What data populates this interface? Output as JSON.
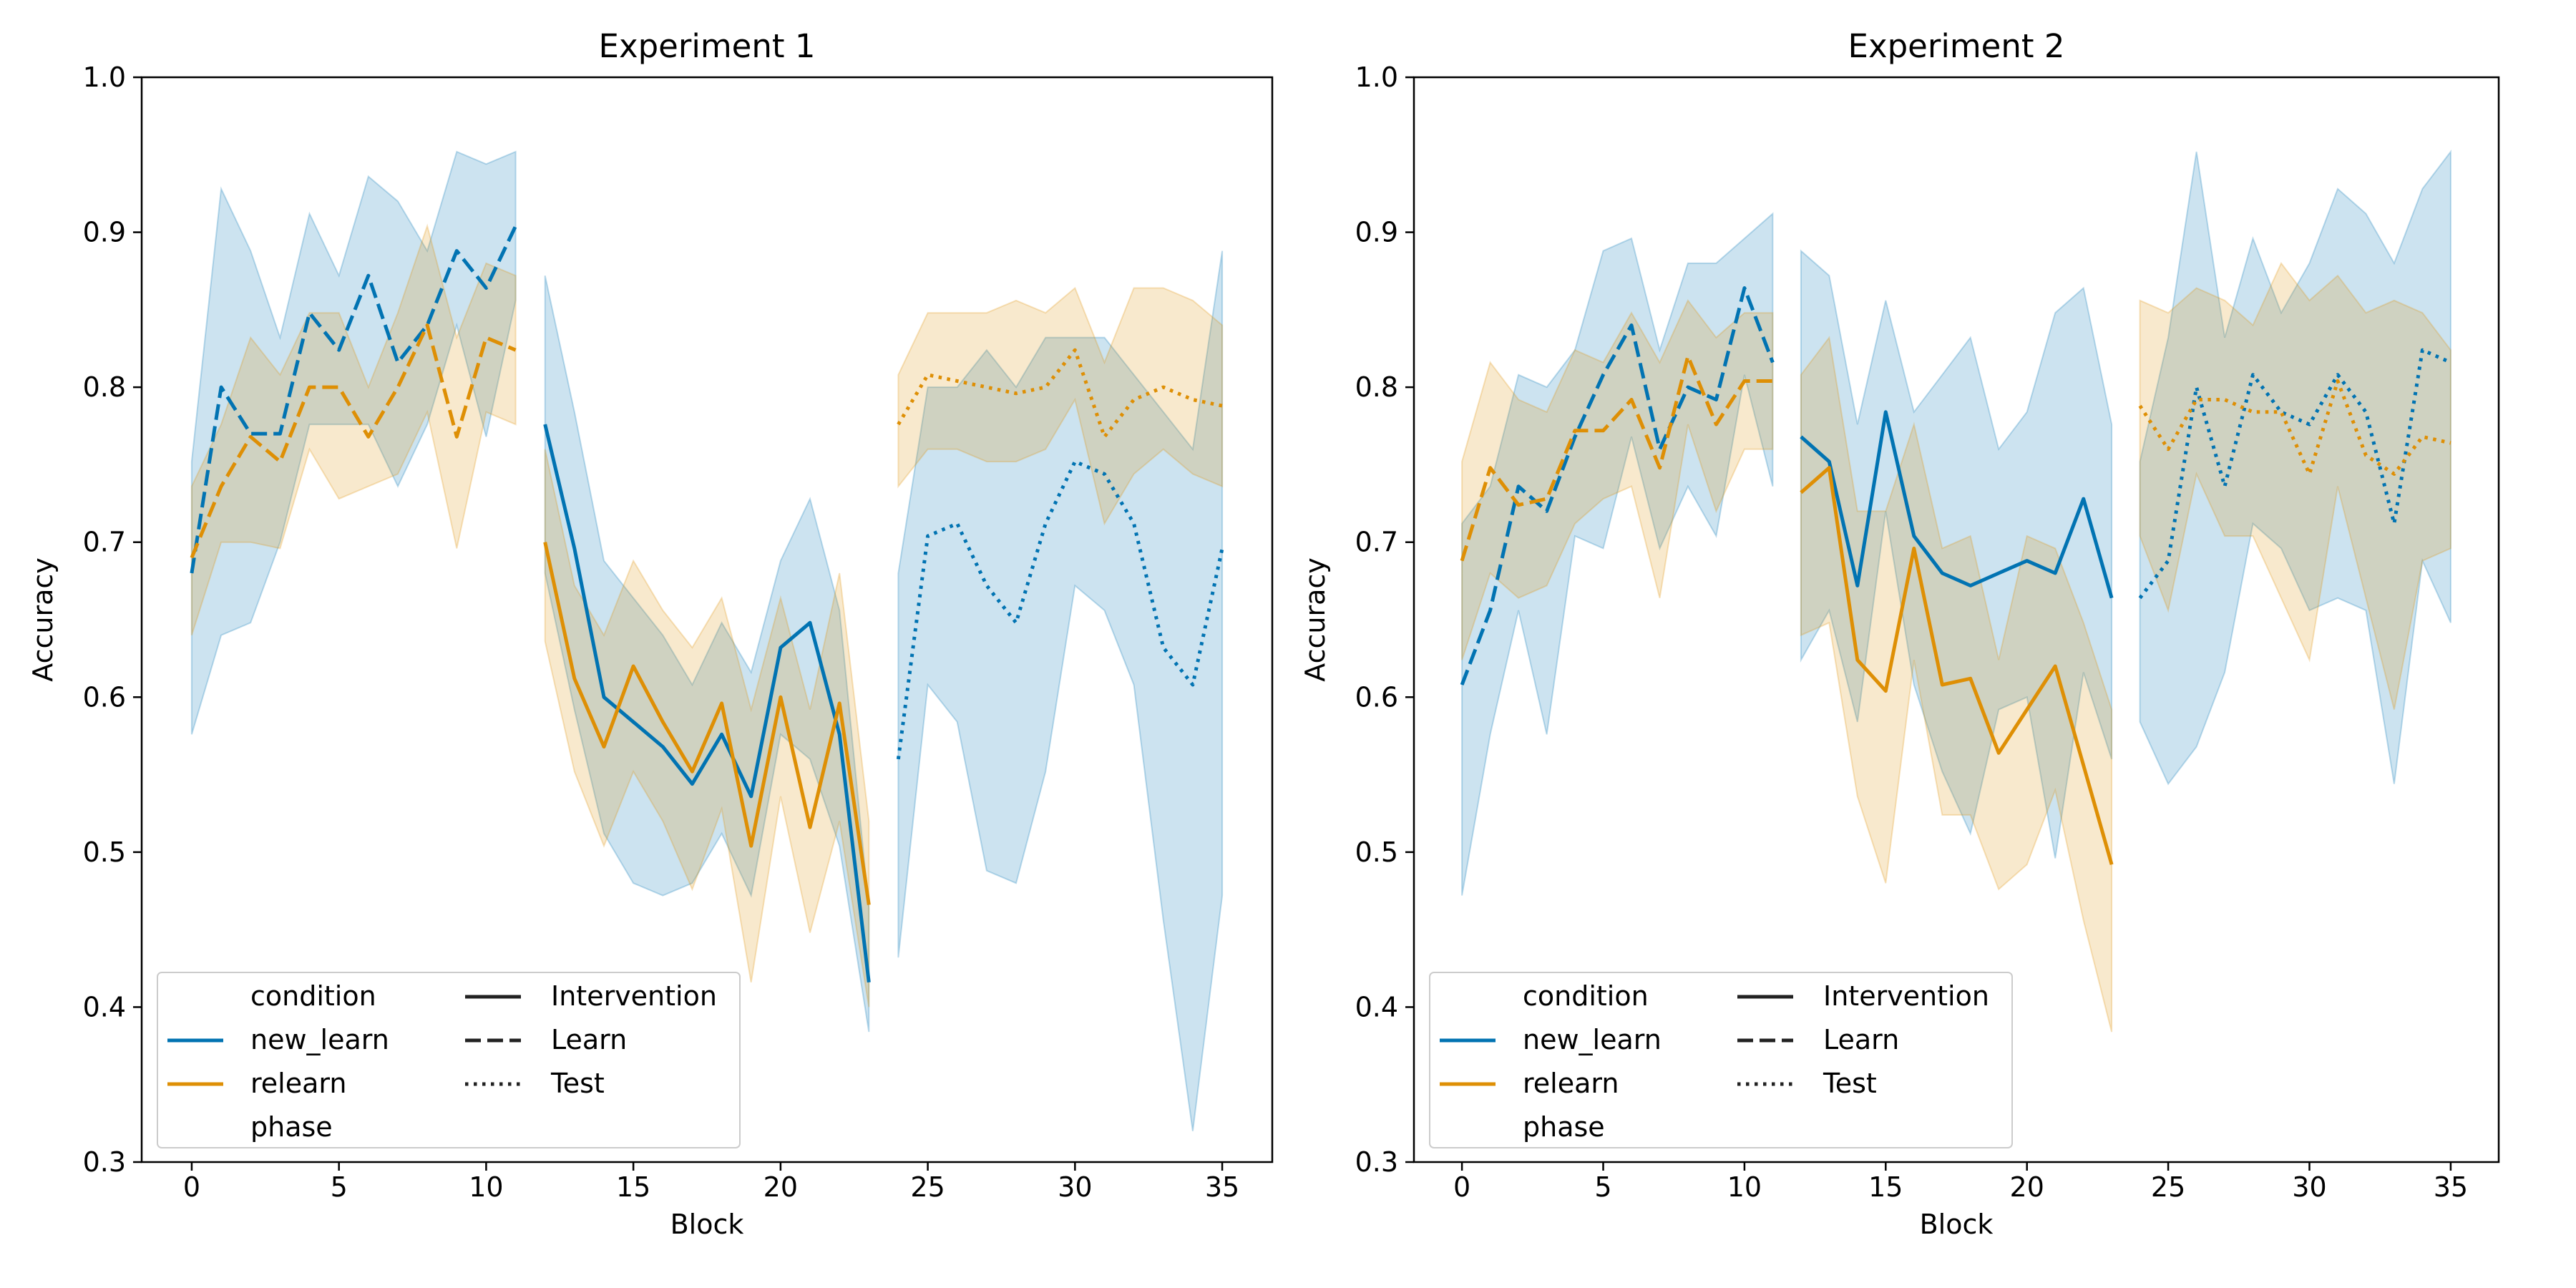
{
  "colors": {
    "new_learn": "#0173b2",
    "relearn": "#de8f05",
    "new_learn_band": "#0173b2",
    "relearn_band": "#de8f05",
    "axis": "#000000"
  },
  "legend": {
    "hue_title": "condition",
    "hue_items": [
      {
        "label": "new_learn",
        "color": "#0173b2"
      },
      {
        "label": "relearn",
        "color": "#de8f05"
      }
    ],
    "style_title": "phase",
    "style_items": [
      {
        "label": "Intervention",
        "dash": "solid"
      },
      {
        "label": "Learn",
        "dash": "dashed"
      },
      {
        "label": "Test",
        "dash": "dotted"
      }
    ],
    "placement": "lower-left"
  },
  "chart_data": [
    {
      "type": "line",
      "title": "Experiment 1",
      "xlabel": "Block",
      "ylabel": "Accuracy",
      "xlim": [
        -1.7,
        36.7
      ],
      "ylim": [
        0.3,
        1.0
      ],
      "xticks": [
        0,
        5,
        10,
        15,
        20,
        25,
        30,
        35
      ],
      "yticks": [
        "0.3",
        "0.4",
        "0.5",
        "0.6",
        "0.7",
        "0.8",
        "0.9",
        "1.0"
      ],
      "grid": false,
      "series": [
        {
          "condition": "new_learn",
          "phase": "Learn",
          "x": [
            0,
            1,
            2,
            3,
            4,
            5,
            6,
            7,
            8,
            9,
            10,
            11
          ],
          "y": [
            0.68,
            0.8,
            0.77,
            0.77,
            0.848,
            0.824,
            0.872,
            0.816,
            0.84,
            0.888,
            0.864,
            0.904
          ],
          "lo": [
            0.576,
            0.64,
            0.648,
            0.7,
            0.776,
            0.776,
            0.776,
            0.736,
            0.776,
            0.84,
            0.768,
            0.856
          ],
          "hi": [
            0.752,
            0.928,
            0.888,
            0.832,
            0.912,
            0.872,
            0.936,
            0.92,
            0.888,
            0.952,
            0.944,
            0.952
          ]
        },
        {
          "condition": "relearn",
          "phase": "Learn",
          "x": [
            0,
            1,
            2,
            3,
            4,
            5,
            6,
            7,
            8,
            9,
            10,
            11
          ],
          "y": [
            0.69,
            0.736,
            0.768,
            0.752,
            0.8,
            0.8,
            0.768,
            0.8,
            0.84,
            0.768,
            0.832,
            0.824
          ],
          "lo": [
            0.64,
            0.7,
            0.7,
            0.696,
            0.76,
            0.728,
            0.736,
            0.744,
            0.784,
            0.696,
            0.784,
            0.776
          ],
          "hi": [
            0.736,
            0.776,
            0.832,
            0.808,
            0.848,
            0.848,
            0.8,
            0.848,
            0.904,
            0.832,
            0.88,
            0.872
          ]
        },
        {
          "condition": "new_learn",
          "phase": "Intervention",
          "x": [
            12,
            13,
            14,
            15,
            16,
            17,
            18,
            19,
            20,
            21,
            22,
            23
          ],
          "y": [
            0.776,
            0.696,
            0.6,
            0.584,
            0.568,
            0.544,
            0.576,
            0.536,
            0.632,
            0.648,
            0.576,
            0.416
          ],
          "lo": [
            0.68,
            0.592,
            0.512,
            0.48,
            0.472,
            0.48,
            0.512,
            0.472,
            0.576,
            0.56,
            0.504,
            0.384
          ],
          "hi": [
            0.872,
            0.784,
            0.688,
            0.664,
            0.64,
            0.608,
            0.648,
            0.616,
            0.688,
            0.728,
            0.656,
            0.464
          ]
        },
        {
          "condition": "relearn",
          "phase": "Intervention",
          "x": [
            12,
            13,
            14,
            15,
            16,
            17,
            18,
            19,
            20,
            21,
            22,
            23
          ],
          "y": [
            0.7,
            0.612,
            0.568,
            0.62,
            0.584,
            0.552,
            0.596,
            0.504,
            0.6,
            0.516,
            0.596,
            0.466
          ],
          "lo": [
            0.636,
            0.552,
            0.504,
            0.552,
            0.52,
            0.476,
            0.528,
            0.416,
            0.536,
            0.448,
            0.52,
            0.4
          ],
          "hi": [
            0.76,
            0.672,
            0.64,
            0.688,
            0.656,
            0.632,
            0.664,
            0.592,
            0.664,
            0.592,
            0.68,
            0.52
          ]
        },
        {
          "condition": "new_learn",
          "phase": "Test",
          "x": [
            24,
            25,
            26,
            27,
            28,
            29,
            30,
            31,
            32,
            33,
            34,
            35
          ],
          "y": [
            0.56,
            0.704,
            0.712,
            0.672,
            0.648,
            0.712,
            0.752,
            0.744,
            0.712,
            0.632,
            0.608,
            0.696
          ],
          "lo": [
            0.432,
            0.608,
            0.584,
            0.488,
            0.48,
            0.552,
            0.672,
            0.656,
            0.608,
            0.456,
            0.32,
            0.472
          ],
          "hi": [
            0.68,
            0.8,
            0.8,
            0.824,
            0.8,
            0.832,
            0.832,
            0.832,
            0.808,
            0.784,
            0.76,
            0.888
          ]
        },
        {
          "condition": "relearn",
          "phase": "Test",
          "x": [
            24,
            25,
            26,
            27,
            28,
            29,
            30,
            31,
            32,
            33,
            34,
            35
          ],
          "y": [
            0.776,
            0.808,
            0.804,
            0.8,
            0.796,
            0.8,
            0.824,
            0.768,
            0.792,
            0.8,
            0.792,
            0.788
          ],
          "lo": [
            0.736,
            0.76,
            0.76,
            0.752,
            0.752,
            0.76,
            0.792,
            0.712,
            0.744,
            0.76,
            0.744,
            0.736
          ],
          "hi": [
            0.808,
            0.848,
            0.848,
            0.848,
            0.856,
            0.848,
            0.864,
            0.816,
            0.864,
            0.864,
            0.856,
            0.84
          ]
        }
      ]
    },
    {
      "type": "line",
      "title": "Experiment 2",
      "xlabel": "Block",
      "ylabel": "Accuracy",
      "xlim": [
        -1.7,
        36.7
      ],
      "ylim": [
        0.3,
        1.0
      ],
      "xticks": [
        0,
        5,
        10,
        15,
        20,
        25,
        30,
        35
      ],
      "yticks": [
        "0.3",
        "0.4",
        "0.5",
        "0.6",
        "0.7",
        "0.8",
        "0.9",
        "1.0"
      ],
      "grid": false,
      "series": [
        {
          "condition": "new_learn",
          "phase": "Learn",
          "x": [
            0,
            1,
            2,
            3,
            4,
            5,
            6,
            7,
            8,
            9,
            10,
            11
          ],
          "y": [
            0.608,
            0.656,
            0.736,
            0.72,
            0.768,
            0.808,
            0.84,
            0.76,
            0.8,
            0.792,
            0.864,
            0.816
          ],
          "lo": [
            0.472,
            0.576,
            0.656,
            0.576,
            0.704,
            0.696,
            0.768,
            0.696,
            0.736,
            0.704,
            0.808,
            0.736
          ],
          "hi": [
            0.712,
            0.736,
            0.808,
            0.8,
            0.824,
            0.888,
            0.896,
            0.824,
            0.88,
            0.88,
            0.896,
            0.912
          ]
        },
        {
          "condition": "relearn",
          "phase": "Learn",
          "x": [
            0,
            1,
            2,
            3,
            4,
            5,
            6,
            7,
            8,
            9,
            10,
            11
          ],
          "y": [
            0.688,
            0.748,
            0.724,
            0.728,
            0.772,
            0.772,
            0.792,
            0.748,
            0.82,
            0.776,
            0.804,
            0.804
          ],
          "lo": [
            0.624,
            0.68,
            0.664,
            0.672,
            0.712,
            0.728,
            0.736,
            0.664,
            0.776,
            0.72,
            0.76,
            0.76
          ],
          "hi": [
            0.752,
            0.816,
            0.792,
            0.784,
            0.824,
            0.816,
            0.848,
            0.816,
            0.856,
            0.832,
            0.848,
            0.848
          ]
        },
        {
          "condition": "new_learn",
          "phase": "Intervention",
          "x": [
            12,
            13,
            14,
            15,
            16,
            17,
            18,
            19,
            20,
            21,
            22,
            23
          ],
          "y": [
            0.768,
            0.752,
            0.672,
            0.784,
            0.704,
            0.68,
            0.672,
            0.68,
            0.688,
            0.68,
            0.728,
            0.664
          ],
          "lo": [
            0.624,
            0.656,
            0.584,
            0.72,
            0.608,
            0.552,
            0.512,
            0.592,
            0.6,
            0.496,
            0.616,
            0.56
          ],
          "hi": [
            0.888,
            0.872,
            0.776,
            0.856,
            0.784,
            0.808,
            0.832,
            0.76,
            0.784,
            0.848,
            0.864,
            0.776
          ]
        },
        {
          "condition": "relearn",
          "phase": "Intervention",
          "x": [
            12,
            13,
            14,
            15,
            16,
            17,
            18,
            19,
            20,
            21,
            22,
            23
          ],
          "y": [
            0.732,
            0.748,
            0.624,
            0.604,
            0.696,
            0.608,
            0.612,
            0.564,
            0.592,
            0.62,
            0.556,
            0.492
          ],
          "lo": [
            0.64,
            0.648,
            0.536,
            0.48,
            0.624,
            0.524,
            0.524,
            0.476,
            0.492,
            0.54,
            0.456,
            0.384
          ],
          "hi": [
            0.808,
            0.832,
            0.72,
            0.72,
            0.776,
            0.696,
            0.704,
            0.624,
            0.704,
            0.696,
            0.648,
            0.592
          ]
        },
        {
          "condition": "new_learn",
          "phase": "Test",
          "x": [
            24,
            25,
            26,
            27,
            28,
            29,
            30,
            31,
            32,
            33,
            34,
            35
          ],
          "y": [
            0.664,
            0.688,
            0.8,
            0.736,
            0.808,
            0.784,
            0.776,
            0.808,
            0.784,
            0.712,
            0.824,
            0.816
          ],
          "lo": [
            0.584,
            0.544,
            0.568,
            0.616,
            0.712,
            0.696,
            0.656,
            0.664,
            0.656,
            0.544,
            0.688,
            0.648
          ],
          "hi": [
            0.752,
            0.832,
            0.952,
            0.832,
            0.896,
            0.848,
            0.88,
            0.928,
            0.912,
            0.88,
            0.928,
            0.952
          ]
        },
        {
          "condition": "relearn",
          "phase": "Test",
          "x": [
            24,
            25,
            26,
            27,
            28,
            29,
            30,
            31,
            32,
            33,
            34,
            35
          ],
          "y": [
            0.788,
            0.76,
            0.792,
            0.792,
            0.784,
            0.784,
            0.744,
            0.804,
            0.756,
            0.744,
            0.768,
            0.764
          ],
          "lo": [
            0.704,
            0.656,
            0.744,
            0.704,
            0.704,
            0.664,
            0.624,
            0.736,
            0.664,
            0.592,
            0.688,
            0.696
          ],
          "hi": [
            0.856,
            0.848,
            0.864,
            0.856,
            0.84,
            0.88,
            0.856,
            0.872,
            0.848,
            0.856,
            0.848,
            0.824
          ]
        }
      ]
    }
  ]
}
